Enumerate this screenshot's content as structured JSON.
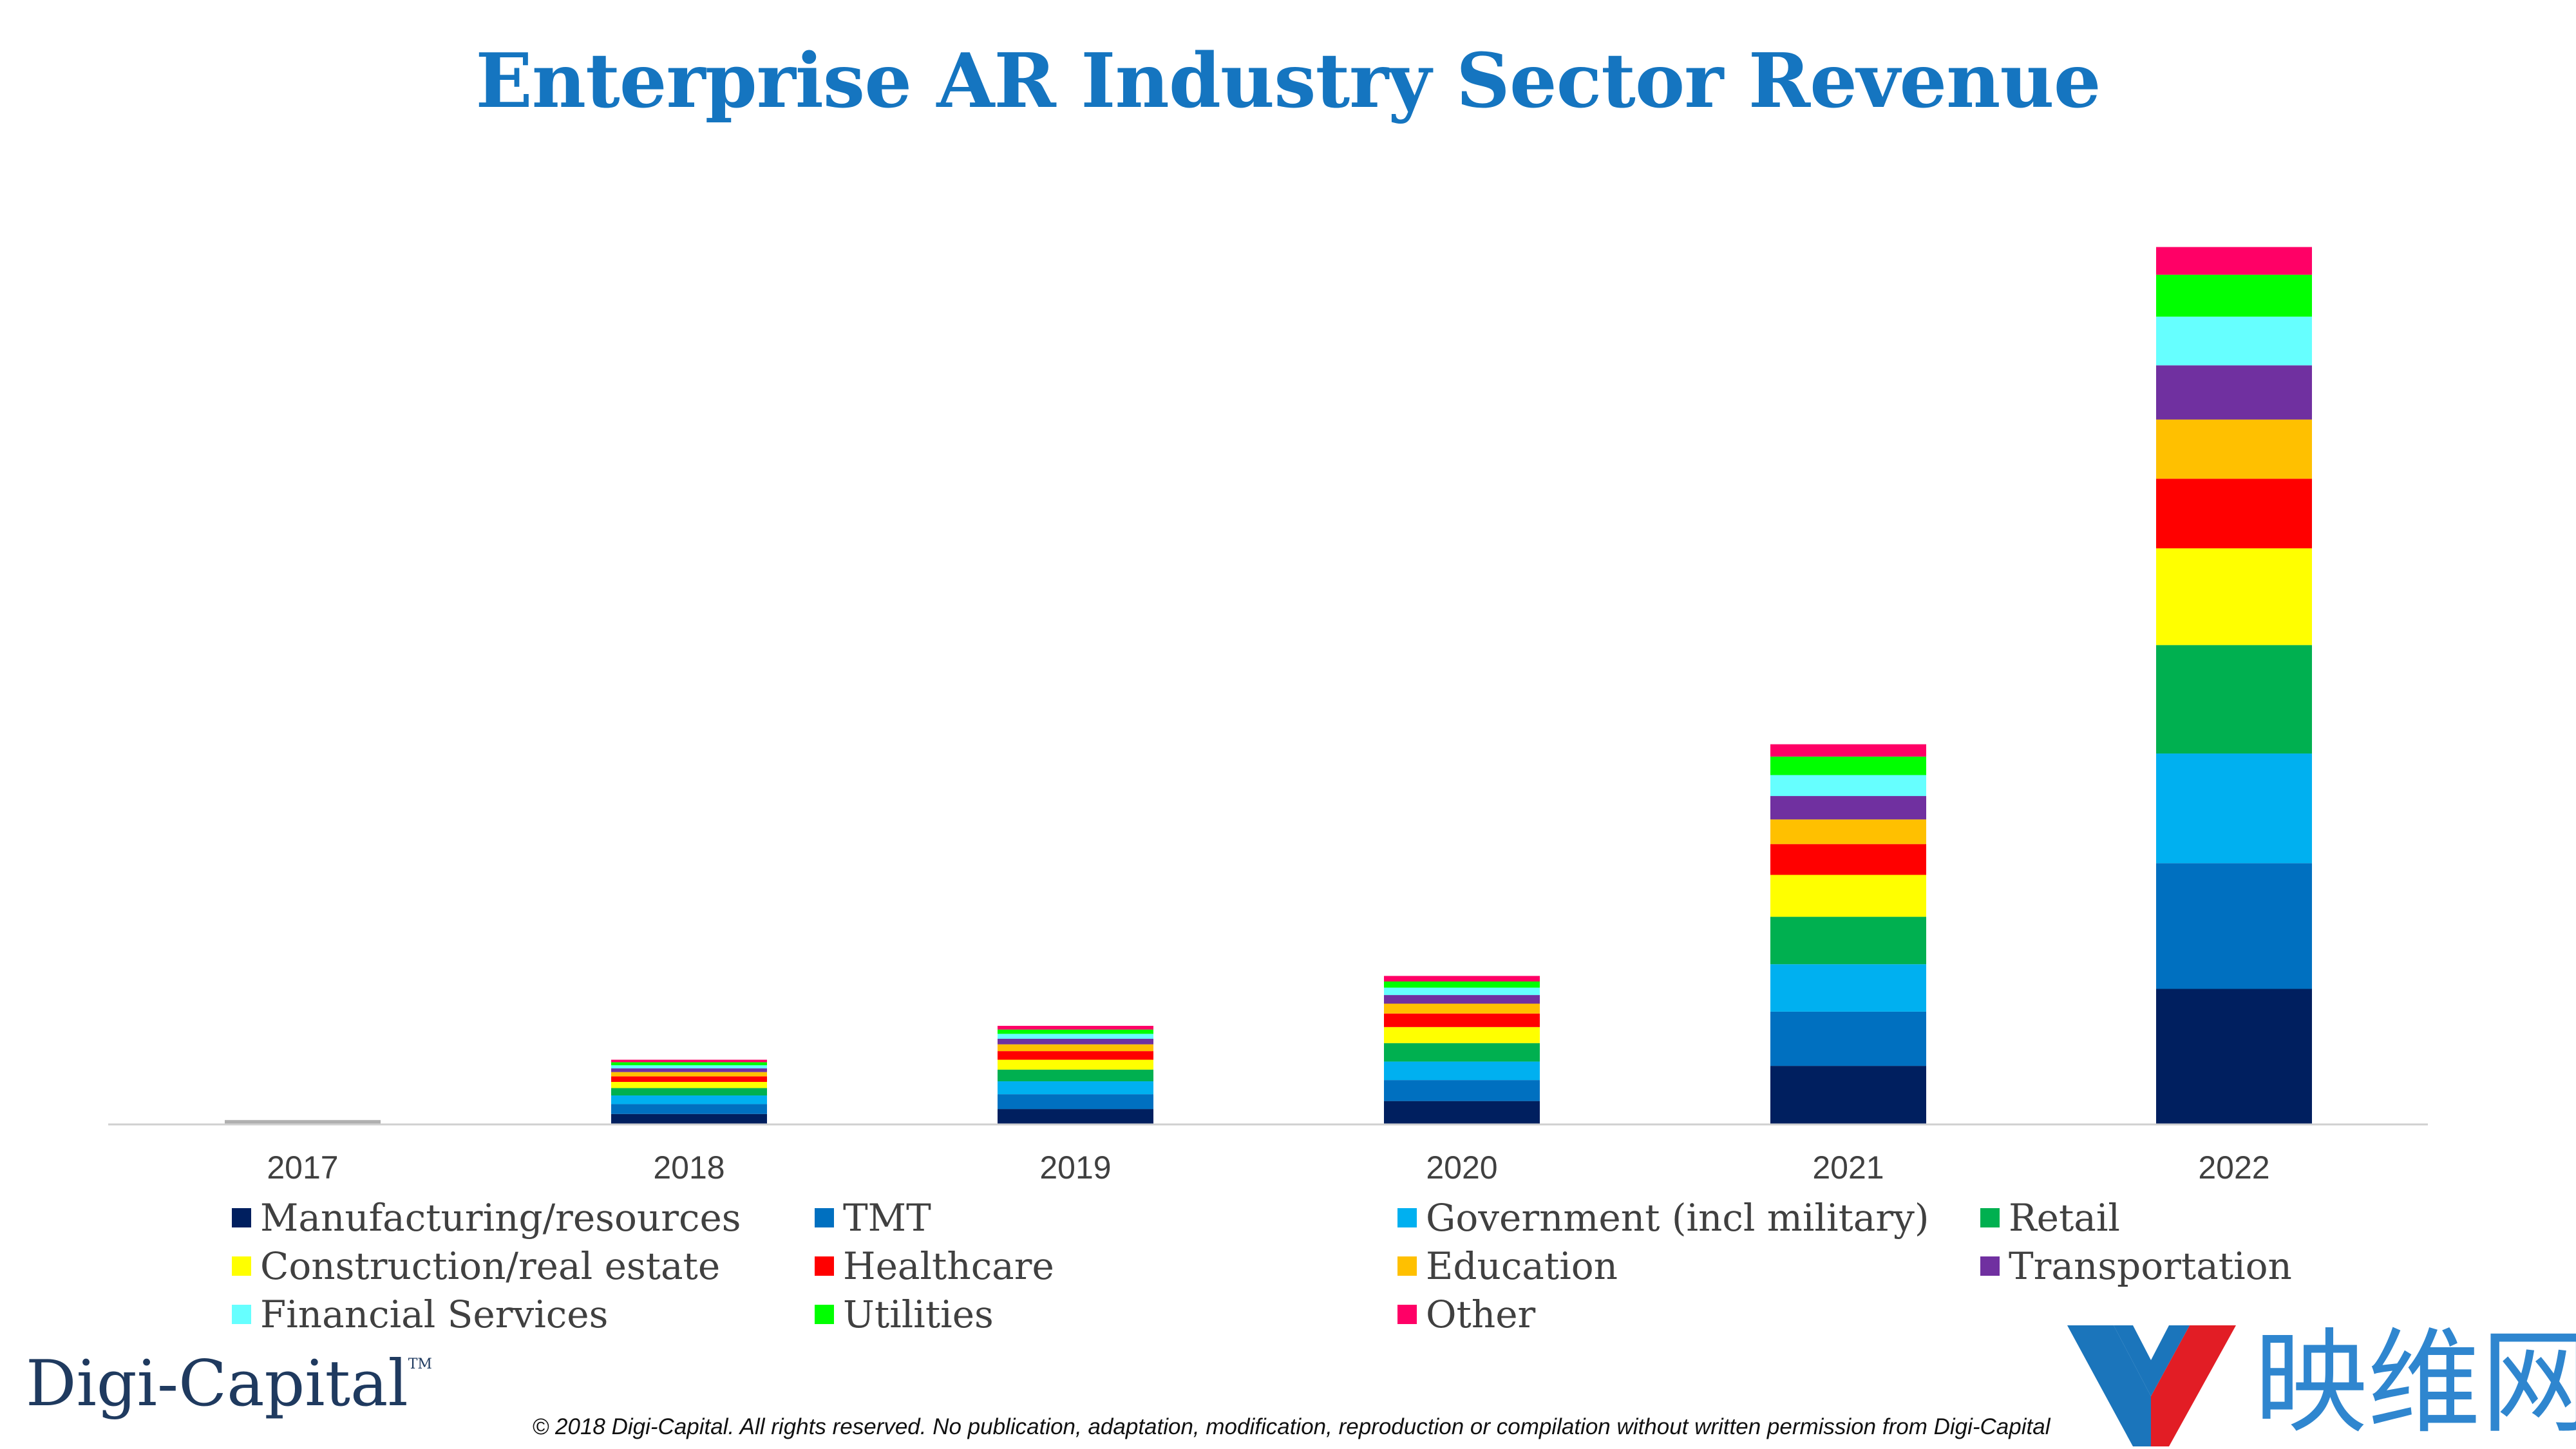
{
  "chart_data": {
    "type": "bar",
    "stacked": true,
    "title": "Enterprise AR Industry Sector Revenue",
    "categories": [
      "2017",
      "2018",
      "2019",
      "2020",
      "2021",
      "2022"
    ],
    "legend_position": "bottom",
    "grid": false,
    "y_axis_visible": false,
    "ylim": [
      0,
      1480
    ],
    "series": [
      {
        "name": "Manufacturing/resources",
        "color": "#001f5f",
        "values": [
          2,
          17,
          25,
          38,
          95,
          220
        ]
      },
      {
        "name": "TMT",
        "color": "#0070c0",
        "values": [
          1,
          16,
          24,
          34,
          88,
          204
        ]
      },
      {
        "name": "Government (incl military)",
        "color": "#00b0f0",
        "values": [
          1,
          14,
          21,
          30,
          77,
          178
        ]
      },
      {
        "name": "Retail",
        "color": "#00b050",
        "values": [
          1,
          12,
          19,
          30,
          77,
          176
        ]
      },
      {
        "name": "Construction/real estate",
        "color": "#ffff00",
        "values": [
          1,
          10,
          16,
          26,
          68,
          157
        ]
      },
      {
        "name": "Healthcare",
        "color": "#ff0000",
        "values": [
          1,
          9,
          14,
          22,
          50,
          113
        ]
      },
      {
        "name": "Education",
        "color": "#ffc000",
        "values": [
          0,
          7,
          11,
          16,
          40,
          96
        ]
      },
      {
        "name": "Transportation",
        "color": "#7030a0",
        "values": [
          0,
          6,
          9,
          14,
          38,
          88
        ]
      },
      {
        "name": "Financial Services",
        "color": "#66ffff",
        "values": [
          0,
          5,
          8,
          12,
          34,
          79
        ]
      },
      {
        "name": "Utilities",
        "color": "#00ff00",
        "values": [
          0,
          5,
          7,
          10,
          30,
          68
        ]
      },
      {
        "name": "Other",
        "color": "#ff0066",
        "values": [
          0,
          4,
          6,
          9,
          20,
          45
        ]
      }
    ]
  },
  "brand": {
    "name": "Digi-Capital",
    "tm": "TM"
  },
  "copyright": "© 2018 Digi-Capital. All rights reserved. No publication, adaptation, modification, reproduction or compilation without written permission from Digi-Capital",
  "watermark": {
    "text": "映维网",
    "colors": [
      "#1b75bb",
      "#e21d25"
    ]
  }
}
